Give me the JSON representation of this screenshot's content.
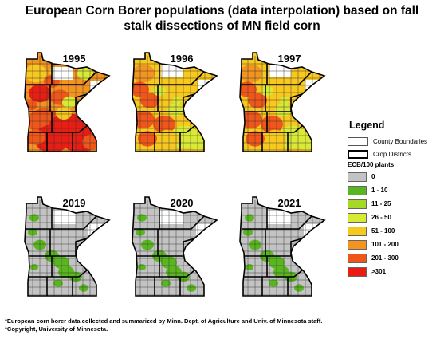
{
  "title_line1": "European Corn Borer populations (data interpolation) based on fall",
  "title_line2": "stalk dissections of MN field corn",
  "maps": [
    {
      "year": "1995",
      "palette": "high"
    },
    {
      "year": "1996",
      "palette": "mid"
    },
    {
      "year": "1997",
      "palette": "mid"
    },
    {
      "year": "2019",
      "palette": "low"
    },
    {
      "year": "2020",
      "palette": "low"
    },
    {
      "year": "2021",
      "palette": "low"
    }
  ],
  "legend": {
    "title": "Legend",
    "county_label": "County Boundaries",
    "district_label": "Crop Districts",
    "units_label": "ECB/100 plants",
    "bins": [
      {
        "label": "0",
        "color": "#c3c3c3"
      },
      {
        "label": "1 - 10",
        "color": "#5ab620"
      },
      {
        "label": "11 - 25",
        "color": "#a6d926"
      },
      {
        "label": "26 - 50",
        "color": "#d8e936"
      },
      {
        "label": "51 - 100",
        "color": "#f7c81e"
      },
      {
        "label": "101 - 200",
        "color": "#f39320"
      },
      {
        "label": "201 - 300",
        "color": "#f0561a"
      },
      {
        "label": ">301",
        "color": "#e81d14"
      }
    ]
  },
  "footnote_line1": "*European corn borer data collected and summarized by Minn. Dept. of Agriculture and Univ. of Minnesota staff.",
  "footnote_line2": "*Copyright, University of Minnesota."
}
